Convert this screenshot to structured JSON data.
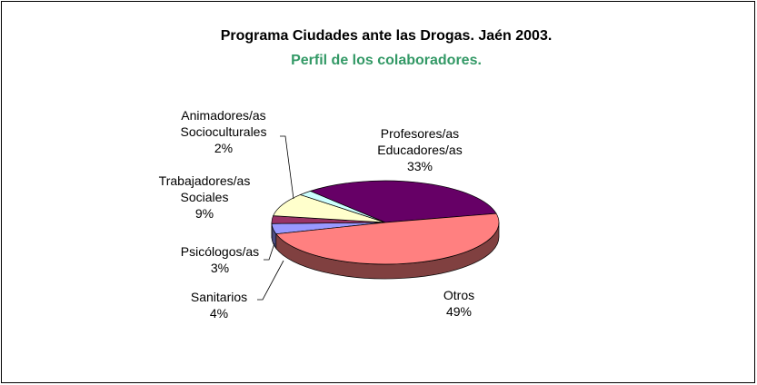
{
  "chart_data": {
    "type": "pie3d",
    "title": "Programa Ciudades ante las Drogas. Jaén 2003.",
    "subtitle": "Perfil de los colaboradores.",
    "categories": [
      "Sanitarios",
      "Psicólogos/as",
      "Trabajadores/as Sociales",
      "Animadores/as Socioculturales",
      "Profesores/as Educadores/as",
      "Otros"
    ],
    "values": [
      4,
      3,
      9,
      2,
      33,
      49
    ],
    "value_labels": [
      "4%",
      "3%",
      "9%",
      "2%",
      "33%",
      "49%"
    ],
    "colors": [
      "#9999ff",
      "#993366",
      "#ffffcc",
      "#ccffff",
      "#660066",
      "#ff8080"
    ]
  }
}
